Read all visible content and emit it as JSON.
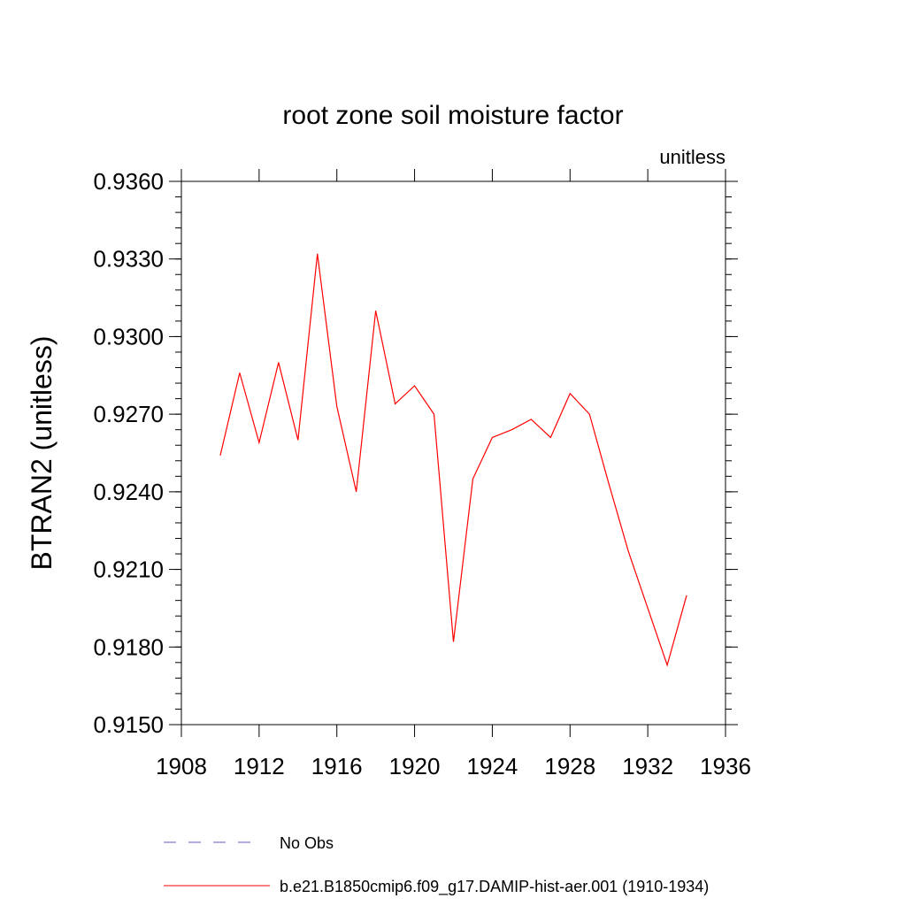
{
  "chart_data": {
    "type": "line",
    "title": "root zone soil moisture factor",
    "units_label": "unitless",
    "xlabel": "",
    "ylabel": "BTRAN2  (unitless)",
    "xlim": [
      1908,
      1936
    ],
    "ylim": [
      0.915,
      0.936
    ],
    "x_ticks": [
      "1908",
      "1912",
      "1916",
      "1920",
      "1924",
      "1928",
      "1932",
      "1936"
    ],
    "y_ticks": [
      "0.9150",
      "0.9180",
      "0.9210",
      "0.9240",
      "0.9270",
      "0.9300",
      "0.9330",
      "0.9360"
    ],
    "grid": false,
    "legend_position": "bottom",
    "series": [
      {
        "name": "No Obs",
        "color": "#6a5acd",
        "style": "dashed",
        "x": [],
        "y": []
      },
      {
        "name": "b.e21.B1850cmip6.f09_g17.DAMIP-hist-aer.001 (1910-1934)",
        "color": "#ff0000",
        "style": "solid",
        "x": [
          1910,
          1911,
          1912,
          1913,
          1914,
          1915,
          1916,
          1917,
          1918,
          1919,
          1920,
          1921,
          1922,
          1923,
          1924,
          1925,
          1926,
          1927,
          1928,
          1929,
          1930,
          1931,
          1932,
          1933,
          1934
        ],
        "y": [
          0.9254,
          0.9286,
          0.9259,
          0.929,
          0.926,
          0.9332,
          0.9273,
          0.924,
          0.931,
          0.9274,
          0.9281,
          0.927,
          0.9182,
          0.9245,
          0.9261,
          0.9264,
          0.9268,
          0.9261,
          0.9278,
          0.927,
          0.9243,
          0.9217,
          0.9195,
          0.9173,
          0.92
        ]
      }
    ]
  }
}
